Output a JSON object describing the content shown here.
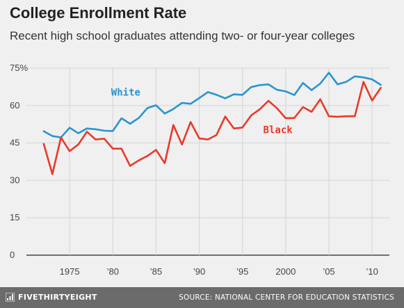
{
  "title": "College Enrollment Rate",
  "subtitle": "Recent high school graduates attending two- or four-year colleges",
  "footer": {
    "brand": "FIVETHIRTYEIGHT",
    "source": "SOURCE: NATIONAL CENTER FOR EDUCATION STATISTICS"
  },
  "chart_data": {
    "type": "line",
    "ylim": [
      0,
      75
    ],
    "xlim": [
      1970,
      2012
    ],
    "yticks": [
      0,
      15,
      30,
      45,
      60,
      75
    ],
    "ytick_labels": [
      "0",
      "15",
      "30",
      "45",
      "60",
      "75%"
    ],
    "xticks": [
      1975,
      1980,
      1985,
      1990,
      1995,
      2000,
      2005,
      2010
    ],
    "xtick_labels": [
      "1975",
      "’80",
      "’85",
      "’90",
      "’95",
      "2000",
      "’05",
      "’10"
    ],
    "grid": true,
    "series": [
      {
        "name": "White",
        "color": "#2a94cf",
        "x": [
          1972,
          1973,
          1974,
          1975,
          1976,
          1977,
          1978,
          1979,
          1980,
          1981,
          1982,
          1983,
          1984,
          1985,
          1986,
          1987,
          1988,
          1989,
          1990,
          1991,
          1992,
          1993,
          1994,
          1995,
          1996,
          1997,
          1998,
          1999,
          2000,
          2001,
          2002,
          2003,
          2004,
          2005,
          2006,
          2007,
          2008,
          2009,
          2010,
          2011
        ],
        "values": [
          49.7,
          47.8,
          47.2,
          51.1,
          48.9,
          50.8,
          50.5,
          49.9,
          49.8,
          54.9,
          52.7,
          55.0,
          59.0,
          60.1,
          56.8,
          58.6,
          61.1,
          60.7,
          63.0,
          65.4,
          64.3,
          62.9,
          64.5,
          64.3,
          67.4,
          68.2,
          68.5,
          66.3,
          65.7,
          64.2,
          69.1,
          66.2,
          68.8,
          73.2,
          68.5,
          69.5,
          71.7,
          71.3,
          70.5,
          68.3
        ]
      },
      {
        "name": "Black",
        "color": "#e8392a",
        "x": [
          1972,
          1973,
          1974,
          1975,
          1976,
          1977,
          1978,
          1979,
          1980,
          1981,
          1982,
          1983,
          1984,
          1985,
          1986,
          1987,
          1988,
          1989,
          1990,
          1991,
          1992,
          1993,
          1994,
          1995,
          1996,
          1997,
          1998,
          1999,
          2000,
          2001,
          2002,
          2003,
          2004,
          2005,
          2006,
          2007,
          2008,
          2009,
          2010,
          2011
        ],
        "values": [
          44.6,
          32.5,
          47.2,
          41.7,
          44.4,
          49.5,
          46.4,
          46.7,
          42.7,
          42.7,
          35.8,
          38.0,
          39.8,
          42.2,
          36.9,
          52.2,
          44.4,
          53.4,
          46.8,
          46.4,
          48.2,
          55.6,
          50.8,
          51.2,
          56.0,
          58.5,
          61.9,
          58.9,
          54.9,
          55.0,
          59.4,
          57.5,
          62.5,
          55.7,
          55.5,
          55.7,
          55.7,
          69.5,
          62.0,
          67.1
        ]
      }
    ]
  }
}
